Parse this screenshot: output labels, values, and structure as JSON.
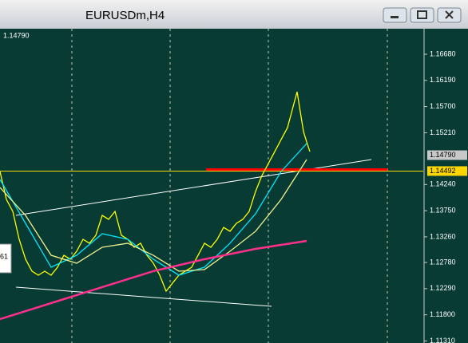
{
  "window": {
    "title": "EURUSDm,H4"
  },
  "chart_data": {
    "type": "line",
    "corner_label": "1.14790",
    "side_label": "61",
    "xlim": [
      0,
      530
    ],
    "ylim": [
      1.11272,
      1.17158
    ],
    "yticks": [
      {
        "value": 1.1668,
        "label": "1.16680"
      },
      {
        "value": 1.1619,
        "label": "1.16190"
      },
      {
        "value": 1.157,
        "label": "1.15700"
      },
      {
        "value": 1.1521,
        "label": "1.15210"
      },
      {
        "value": 1.1424,
        "label": "1.14240"
      },
      {
        "value": 1.1375,
        "label": "1.13750"
      },
      {
        "value": 1.1326,
        "label": "1.13260"
      },
      {
        "value": 1.1278,
        "label": "1.12780"
      },
      {
        "value": 1.1229,
        "label": "1.12290"
      },
      {
        "value": 1.118,
        "label": "1.11800"
      },
      {
        "value": 1.1131,
        "label": "1.11310"
      }
    ],
    "markers": [
      {
        "value": 1.1479,
        "label": "1.14790",
        "color": "#c8c8c8"
      },
      {
        "value": 1.14492,
        "label": "1.14492",
        "color": "#ffd700"
      }
    ],
    "series": [
      {
        "color": "#ffff00",
        "x": [
          0,
          8,
          16,
          24,
          32,
          40,
          48,
          56,
          64,
          72,
          80,
          88,
          96,
          104,
          112,
          120,
          128,
          136,
          144,
          152,
          160,
          168,
          176,
          184,
          192,
          200,
          208,
          216,
          224,
          232,
          240,
          248,
          256,
          264,
          272,
          280,
          288,
          296,
          304,
          312,
          320,
          328,
          336,
          344,
          352,
          360,
          368,
          372,
          376,
          380,
          384,
          388
        ],
        "values": [
          1.14484,
          1.13961,
          1.13737,
          1.13214,
          1.12841,
          1.12617,
          1.12542,
          1.12617,
          1.12542,
          1.12691,
          1.12915,
          1.12841,
          1.1299,
          1.13214,
          1.1314,
          1.13289,
          1.13662,
          1.13588,
          1.13737,
          1.13289,
          1.13214,
          1.13065,
          1.1314,
          1.12915,
          1.12766,
          1.12542,
          1.12243,
          1.12393,
          1.12542,
          1.12617,
          1.12691,
          1.12915,
          1.1314,
          1.13065,
          1.13214,
          1.13438,
          1.13364,
          1.13513,
          1.13588,
          1.13737,
          1.14111,
          1.14409,
          1.14633,
          1.14857,
          1.15082,
          1.15306,
          1.15754,
          1.15978,
          1.15604,
          1.15231,
          1.15037,
          1.14857
        ]
      },
      {
        "color": "#00e5ff",
        "x": [
          0,
          32,
          64,
          96,
          128,
          160,
          192,
          224,
          256,
          288,
          320,
          352,
          384
        ],
        "values": [
          1.14335,
          1.13513,
          1.12691,
          1.12915,
          1.13319,
          1.13214,
          1.12841,
          1.12542,
          1.12691,
          1.1314,
          1.13692,
          1.14484,
          1.15007
        ]
      },
      {
        "color": "#f0f08c",
        "x": [
          0,
          32,
          64,
          96,
          128,
          160,
          192,
          224,
          256,
          288,
          320,
          352,
          384
        ],
        "values": [
          1.14185,
          1.13662,
          1.12915,
          1.12766,
          1.13065,
          1.1314,
          1.12915,
          1.12617,
          1.12647,
          1.1299,
          1.13364,
          1.13961,
          1.14708
        ]
      },
      {
        "color": "#ff2f8c",
        "x": [
          0,
          64,
          128,
          192,
          256,
          320,
          384
        ],
        "values": [
          1.1172,
          1.12019,
          1.12318,
          1.12617,
          1.12841,
          1.13035,
          1.13184
        ]
      }
    ]
  }
}
